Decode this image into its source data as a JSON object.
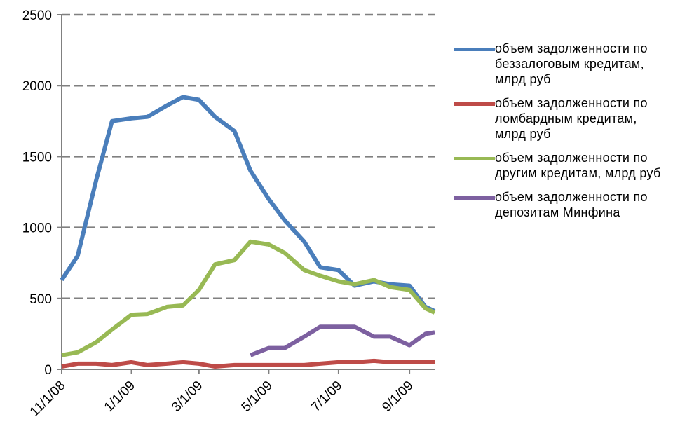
{
  "chart_data": {
    "type": "line",
    "x": [
      "11/1/08",
      "11/15/08",
      "12/1/08",
      "12/15/08",
      "1/1/09",
      "1/15/09",
      "2/1/09",
      "2/15/09",
      "3/1/09",
      "3/15/09",
      "4/1/09",
      "4/15/09",
      "5/1/09",
      "5/15/09",
      "6/1/09",
      "6/15/09",
      "7/1/09",
      "7/15/09",
      "8/1/09",
      "8/15/09",
      "9/1/09",
      "9/15/09",
      "9/23/09"
    ],
    "series": [
      {
        "name": "объем задолженности по беззалоговым кредитам, млрд руб",
        "color": "#4a7ebb",
        "values": [
          630,
          800,
          1330,
          1750,
          1770,
          1780,
          1860,
          1920,
          1900,
          1780,
          1680,
          1400,
          1200,
          1050,
          900,
          720,
          700,
          590,
          620,
          600,
          590,
          440,
          410
        ]
      },
      {
        "name": "объем задолженности по ломбардным кредитам, млрд руб",
        "color": "#be4b48",
        "values": [
          20,
          40,
          40,
          30,
          50,
          30,
          40,
          50,
          40,
          20,
          30,
          30,
          30,
          30,
          30,
          40,
          50,
          50,
          60,
          50,
          50,
          50,
          50
        ]
      },
      {
        "name": "объем задолженности по другим кредитам, млрд руб",
        "color": "#98b954",
        "values": [
          100,
          120,
          190,
          280,
          385,
          390,
          440,
          450,
          560,
          740,
          770,
          900,
          880,
          820,
          700,
          660,
          620,
          600,
          630,
          580,
          560,
          430,
          400
        ]
      },
      {
        "name": "объем задолженности по депозитам Минфина",
        "color": "#7d60a0",
        "values": [
          null,
          null,
          null,
          null,
          null,
          null,
          null,
          null,
          null,
          null,
          null,
          100,
          150,
          150,
          230,
          300,
          300,
          300,
          230,
          230,
          170,
          250,
          260
        ]
      }
    ],
    "xlim": [
      "11/1/08",
      "9/23/09"
    ],
    "xticks": [
      "11/1/08",
      "1/1/09",
      "3/1/09",
      "5/1/09",
      "7/1/09",
      "9/1/09"
    ],
    "ylim": [
      0,
      2500
    ],
    "yticks": [
      0,
      500,
      1000,
      1500,
      2000,
      2500
    ],
    "grid": true
  }
}
